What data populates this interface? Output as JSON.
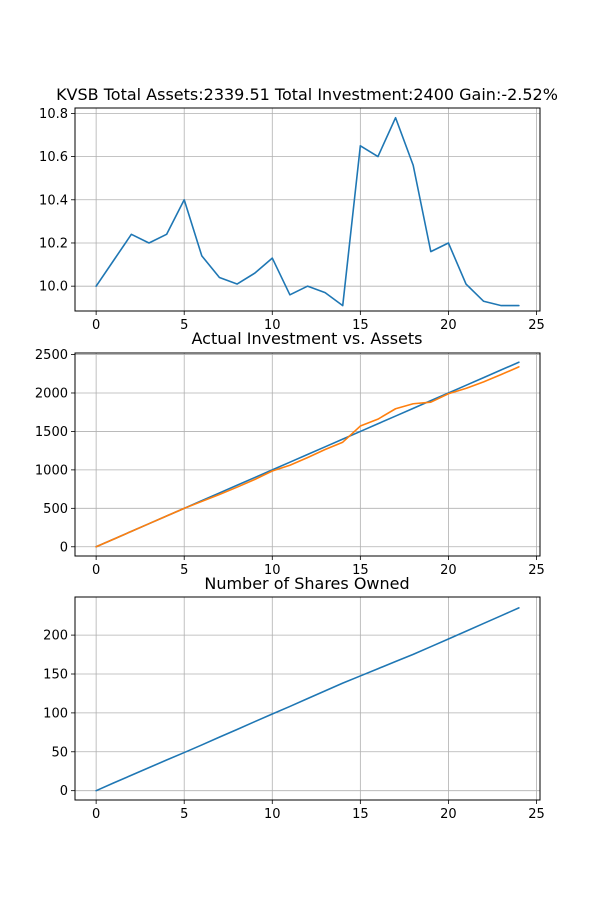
{
  "chart_data": [
    {
      "type": "line",
      "title": "KVSB Total Assets:2339.51  Total Investment:2400  Gain:-2.52%",
      "xlabel": "",
      "ylabel": "",
      "xlim": [
        -1.2,
        25.2
      ],
      "ylim": [
        9.885,
        10.825
      ],
      "xticks": [
        0,
        5,
        10,
        15,
        20,
        25
      ],
      "xtick_labels": [
        "0",
        "5",
        "10",
        "15",
        "20",
        "25"
      ],
      "yticks": [
        10.0,
        10.2,
        10.4,
        10.6,
        10.8
      ],
      "ytick_labels": [
        "10.0",
        "10.2",
        "10.4",
        "10.6",
        "10.8"
      ],
      "grid": true,
      "x": [
        0,
        1,
        2,
        3,
        4,
        5,
        6,
        7,
        8,
        9,
        10,
        11,
        12,
        13,
        14,
        15,
        16,
        17,
        18,
        19,
        20,
        21,
        22,
        23,
        24
      ],
      "series": [
        {
          "color": "#1f77b4",
          "values": [
            10.0,
            10.12,
            10.24,
            10.2,
            10.24,
            10.4,
            10.14,
            10.04,
            10.01,
            10.06,
            10.13,
            9.96,
            10.0,
            9.97,
            9.91,
            10.65,
            10.6,
            10.78,
            10.56,
            10.16,
            10.2,
            10.01,
            9.93,
            9.91,
            9.91
          ]
        }
      ]
    },
    {
      "type": "line",
      "title": "Actual Investment vs. Assets",
      "xlabel": "",
      "ylabel": "",
      "xlim": [
        -1.2,
        25.2
      ],
      "ylim": [
        -120,
        2520
      ],
      "xticks": [
        0,
        5,
        10,
        15,
        20,
        25
      ],
      "xtick_labels": [
        "0",
        "5",
        "10",
        "15",
        "20",
        "25"
      ],
      "yticks": [
        0,
        500,
        1000,
        1500,
        2000,
        2500
      ],
      "ytick_labels": [
        "0",
        "500",
        "1000",
        "1500",
        "2000",
        "2500"
      ],
      "grid": true,
      "x": [
        0,
        1,
        2,
        3,
        4,
        5,
        6,
        7,
        8,
        9,
        10,
        11,
        12,
        13,
        14,
        15,
        16,
        17,
        18,
        19,
        20,
        21,
        22,
        23,
        24
      ],
      "series": [
        {
          "color": "#1f77b4",
          "values": [
            0,
            100,
            200,
            300,
            400,
            500,
            600,
            700,
            800,
            900,
            1000,
            1100,
            1200,
            1300,
            1400,
            1500,
            1600,
            1700,
            1800,
            1900,
            2000,
            2100,
            2200,
            2300,
            2400
          ]
        },
        {
          "color": "#ff7f0e",
          "values": [
            0,
            100,
            200,
            300,
            400,
            500,
            590,
            680,
            775,
            875,
            985,
            1060,
            1160,
            1265,
            1360,
            1570,
            1660,
            1795,
            1860,
            1880,
            1990,
            2060,
            2145,
            2240,
            2340
          ]
        }
      ]
    },
    {
      "type": "line",
      "title": "Number of Shares Owned",
      "xlabel": "",
      "ylabel": "",
      "xlim": [
        -1.2,
        25.2
      ],
      "ylim": [
        -12,
        249
      ],
      "xticks": [
        0,
        5,
        10,
        15,
        20,
        25
      ],
      "xtick_labels": [
        "0",
        "5",
        "10",
        "15",
        "20",
        "25"
      ],
      "yticks": [
        0,
        50,
        100,
        150,
        200
      ],
      "ytick_labels": [
        "0",
        "50",
        "100",
        "150",
        "200"
      ],
      "grid": true,
      "x": [
        0,
        1,
        2,
        3,
        4,
        5,
        6,
        7,
        8,
        9,
        10,
        11,
        12,
        13,
        14,
        15,
        16,
        17,
        18,
        19,
        20,
        21,
        22,
        23,
        24
      ],
      "series": [
        {
          "color": "#1f77b4",
          "values": [
            0,
            10,
            19.8,
            29.6,
            39.4,
            49,
            58.8,
            68.8,
            78.7,
            88.7,
            98.6,
            108.3,
            118.3,
            128.3,
            138.3,
            147.5,
            156.8,
            166.1,
            175.2,
            185.1,
            195.0,
            205.0,
            215.0,
            225.0,
            235.0
          ]
        }
      ]
    }
  ]
}
